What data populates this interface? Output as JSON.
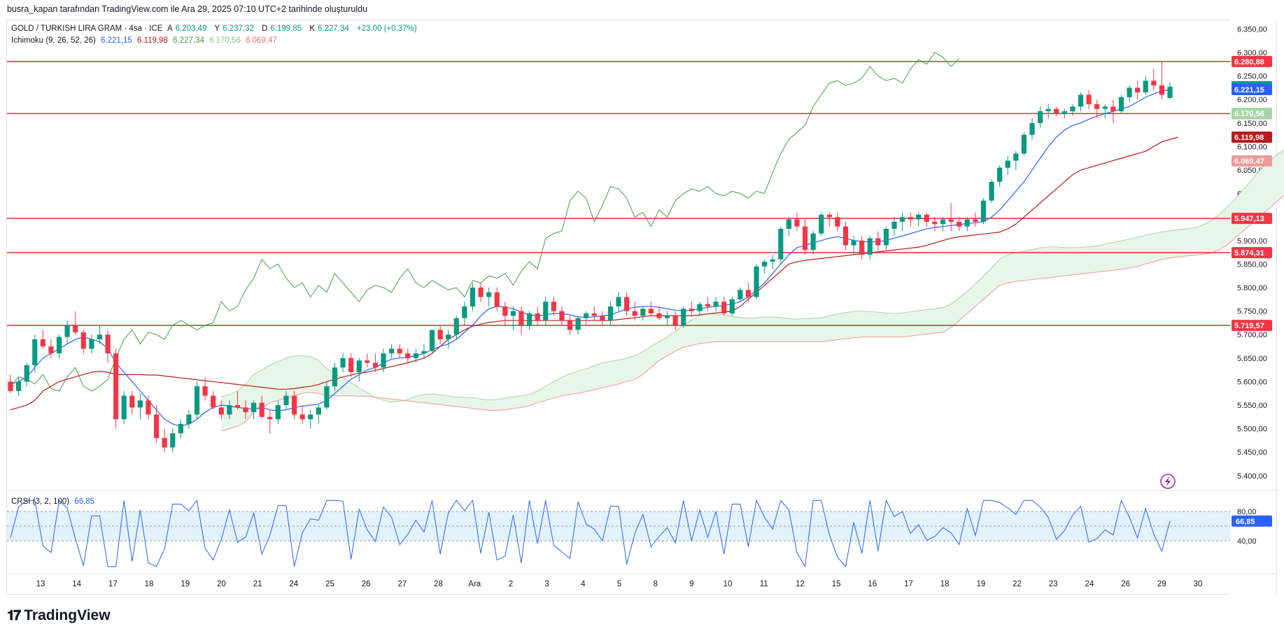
{
  "header": {
    "published_note": "busra_kapan tarafından TradingView.com ile Ara 29, 2025 07:10 UTC+2 tarihinde oluşturuldu"
  },
  "legend": {
    "symbol": "GOLD / TURKISH LIRA GRAM · 4sa · ICE",
    "o_label": "A",
    "o_value": "6.203,49",
    "h_label": "Y",
    "h_value": "6.237,32",
    "l_label": "D",
    "l_value": "6.199,85",
    "c_label": "K",
    "c_value": "6.227,34",
    "change": "+23,00 (+0,37%)",
    "ichimoku_label": "Ichimoku (9, 26, 52, 26)",
    "ichimoku_values": [
      "6.221,15",
      "6.119,98",
      "6.227,34",
      "6.170,56",
      "6.069,47"
    ],
    "crsi_label": "CRSI (3, 2, 100)",
    "crsi_value": "66,85"
  },
  "brand": {
    "name": "TradingView"
  },
  "colors": {
    "up": "#089981",
    "down": "#f23645",
    "tenkan": "#2962ff",
    "kijun": "#b71c1c",
    "chikou": "#43a047",
    "span_a": "#a5d6a7",
    "span_b": "#ef9a9a",
    "cloud_bull": "#e8f5e9",
    "cloud_bear": "#fdecea",
    "hline": "#f23645",
    "crsi": "#2962ff",
    "crsi_band": "#e3f2fd",
    "grid": "#f0f3fa",
    "text": "#131722"
  },
  "chart_data": [
    {
      "type": "candlestick",
      "title": "GOLD / TURKISH LIRA GRAM · 4sa · ICE",
      "x_ticks": [
        "13",
        "14",
        "17",
        "18",
        "19",
        "20",
        "21",
        "24",
        "25",
        "26",
        "27",
        "28",
        "Ara",
        "2",
        "3",
        "4",
        "5",
        "8",
        "9",
        "10",
        "11",
        "12",
        "15",
        "16",
        "17",
        "18",
        "19",
        "22",
        "23",
        "24",
        "26",
        "29",
        "30"
      ],
      "y_ticks": [
        "6.350,00",
        "6.300,00",
        "6.250,00",
        "6.200,00",
        "6.150,00",
        "6.100,00",
        "6.050,00",
        "6.000,00",
        "5.950,00",
        "5.900,00",
        "5.850,00",
        "5.800,00",
        "5.750,00",
        "5.700,00",
        "5.650,00",
        "5.600,00",
        "5.550,00",
        "5.500,00",
        "5.450,00",
        "5.400,00"
      ],
      "ylim": [
        5370,
        6370
      ],
      "candles": [
        [
          5600,
          5615,
          5575,
          5580
        ],
        [
          5580,
          5610,
          5570,
          5600
        ],
        [
          5600,
          5640,
          5590,
          5635
        ],
        [
          5635,
          5700,
          5620,
          5690
        ],
        [
          5690,
          5710,
          5670,
          5675
        ],
        [
          5675,
          5690,
          5650,
          5660
        ],
        [
          5660,
          5700,
          5650,
          5695
        ],
        [
          5695,
          5730,
          5680,
          5720
        ],
        [
          5720,
          5750,
          5700,
          5705
        ],
        [
          5705,
          5710,
          5660,
          5670
        ],
        [
          5670,
          5700,
          5660,
          5690
        ],
        [
          5690,
          5720,
          5680,
          5700
        ],
        [
          5700,
          5710,
          5640,
          5660
        ],
        [
          5660,
          5670,
          5500,
          5520
        ],
        [
          5520,
          5580,
          5510,
          5570
        ],
        [
          5570,
          5580,
          5530,
          5545
        ],
        [
          5545,
          5575,
          5520,
          5560
        ],
        [
          5560,
          5570,
          5520,
          5530
        ],
        [
          5530,
          5550,
          5470,
          5480
        ],
        [
          5480,
          5500,
          5450,
          5460
        ],
        [
          5460,
          5500,
          5450,
          5490
        ],
        [
          5490,
          5520,
          5480,
          5510
        ],
        [
          5510,
          5540,
          5500,
          5530
        ],
        [
          5530,
          5600,
          5520,
          5590
        ],
        [
          5590,
          5610,
          5560,
          5570
        ],
        [
          5570,
          5580,
          5540,
          5545
        ],
        [
          5545,
          5560,
          5520,
          5530
        ],
        [
          5530,
          5560,
          5520,
          5550
        ],
        [
          5550,
          5580,
          5540,
          5545
        ],
        [
          5545,
          5560,
          5520,
          5535
        ],
        [
          5535,
          5560,
          5520,
          5555
        ],
        [
          5555,
          5570,
          5520,
          5525
        ],
        [
          5525,
          5540,
          5490,
          5520
        ],
        [
          5520,
          5560,
          5510,
          5550
        ],
        [
          5550,
          5580,
          5540,
          5570
        ],
        [
          5570,
          5580,
          5520,
          5530
        ],
        [
          5530,
          5550,
          5510,
          5520
        ],
        [
          5520,
          5540,
          5500,
          5530
        ],
        [
          5530,
          5550,
          5510,
          5545
        ],
        [
          5545,
          5600,
          5540,
          5590
        ],
        [
          5590,
          5640,
          5580,
          5630
        ],
        [
          5630,
          5660,
          5620,
          5650
        ],
        [
          5650,
          5660,
          5610,
          5620
        ],
        [
          5620,
          5650,
          5600,
          5645
        ],
        [
          5645,
          5660,
          5630,
          5640
        ],
        [
          5640,
          5660,
          5620,
          5630
        ],
        [
          5630,
          5670,
          5620,
          5660
        ],
        [
          5660,
          5680,
          5650,
          5670
        ],
        [
          5670,
          5680,
          5650,
          5660
        ],
        [
          5660,
          5670,
          5640,
          5650
        ],
        [
          5650,
          5670,
          5640,
          5660
        ],
        [
          5660,
          5680,
          5650,
          5665
        ],
        [
          5665,
          5700,
          5660,
          5710
        ],
        [
          5710,
          5720,
          5680,
          5690
        ],
        [
          5690,
          5710,
          5670,
          5700
        ],
        [
          5700,
          5740,
          5690,
          5735
        ],
        [
          5735,
          5770,
          5720,
          5760
        ],
        [
          5760,
          5810,
          5750,
          5800
        ],
        [
          5800,
          5810,
          5770,
          5780
        ],
        [
          5780,
          5800,
          5760,
          5790
        ],
        [
          5790,
          5800,
          5750,
          5760
        ],
        [
          5760,
          5770,
          5720,
          5740
        ],
        [
          5740,
          5760,
          5710,
          5750
        ],
        [
          5750,
          5760,
          5700,
          5720
        ],
        [
          5720,
          5750,
          5710,
          5745
        ],
        [
          5745,
          5760,
          5720,
          5730
        ],
        [
          5730,
          5780,
          5720,
          5770
        ],
        [
          5770,
          5780,
          5740,
          5750
        ],
        [
          5750,
          5760,
          5720,
          5730
        ],
        [
          5730,
          5740,
          5700,
          5710
        ],
        [
          5710,
          5740,
          5700,
          5735
        ],
        [
          5735,
          5750,
          5720,
          5745
        ],
        [
          5745,
          5760,
          5730,
          5740
        ],
        [
          5740,
          5750,
          5720,
          5730
        ],
        [
          5730,
          5770,
          5720,
          5760
        ],
        [
          5760,
          5790,
          5750,
          5780
        ],
        [
          5780,
          5790,
          5740,
          5750
        ],
        [
          5750,
          5770,
          5730,
          5740
        ],
        [
          5740,
          5760,
          5730,
          5755
        ],
        [
          5755,
          5770,
          5740,
          5745
        ],
        [
          5745,
          5760,
          5730,
          5735
        ],
        [
          5735,
          5750,
          5720,
          5740
        ],
        [
          5740,
          5750,
          5710,
          5720
        ],
        [
          5720,
          5760,
          5715,
          5755
        ],
        [
          5755,
          5770,
          5740,
          5750
        ],
        [
          5750,
          5770,
          5740,
          5765
        ],
        [
          5765,
          5780,
          5750,
          5760
        ],
        [
          5760,
          5780,
          5750,
          5770
        ],
        [
          5770,
          5780,
          5740,
          5745
        ],
        [
          5745,
          5780,
          5740,
          5775
        ],
        [
          5775,
          5800,
          5770,
          5795
        ],
        [
          5795,
          5810,
          5770,
          5780
        ],
        [
          5780,
          5850,
          5775,
          5845
        ],
        [
          5845,
          5860,
          5830,
          5855
        ],
        [
          5855,
          5870,
          5840,
          5860
        ],
        [
          5860,
          5930,
          5850,
          5925
        ],
        [
          5925,
          5950,
          5910,
          5945
        ],
        [
          5945,
          5960,
          5920,
          5930
        ],
        [
          5930,
          5945,
          5870,
          5880
        ],
        [
          5880,
          5920,
          5870,
          5915
        ],
        [
          5915,
          5960,
          5910,
          5955
        ],
        [
          5955,
          5960,
          5930,
          5950
        ],
        [
          5950,
          5960,
          5920,
          5930
        ],
        [
          5930,
          5940,
          5880,
          5890
        ],
        [
          5890,
          5910,
          5870,
          5900
        ],
        [
          5900,
          5910,
          5860,
          5870
        ],
        [
          5870,
          5910,
          5860,
          5905
        ],
        [
          5905,
          5920,
          5880,
          5890
        ],
        [
          5890,
          5930,
          5880,
          5925
        ],
        [
          5925,
          5950,
          5910,
          5940
        ],
        [
          5940,
          5960,
          5920,
          5950
        ],
        [
          5950,
          5960,
          5930,
          5945
        ],
        [
          5945,
          5960,
          5930,
          5955
        ],
        [
          5955,
          5960,
          5930,
          5940
        ],
        [
          5940,
          5950,
          5920,
          5935
        ],
        [
          5935,
          5950,
          5920,
          5945
        ],
        [
          5945,
          5980,
          5920,
          5940
        ],
        [
          5940,
          5950,
          5920,
          5930
        ],
        [
          5930,
          5950,
          5920,
          5945
        ],
        [
          5945,
          5960,
          5930,
          5940
        ],
        [
          5940,
          5990,
          5935,
          5985
        ],
        [
          5985,
          6030,
          5980,
          6025
        ],
        [
          6025,
          6060,
          6015,
          6055
        ],
        [
          6055,
          6080,
          6040,
          6070
        ],
        [
          6070,
          6090,
          6050,
          6085
        ],
        [
          6085,
          6130,
          6080,
          6125
        ],
        [
          6125,
          6160,
          6115,
          6150
        ],
        [
          6150,
          6185,
          6140,
          6175
        ],
        [
          6175,
          6190,
          6160,
          6180
        ],
        [
          6180,
          6185,
          6165,
          6170
        ],
        [
          6170,
          6180,
          6160,
          6175
        ],
        [
          6175,
          6190,
          6165,
          6185
        ],
        [
          6185,
          6215,
          6175,
          6210
        ],
        [
          6210,
          6220,
          6180,
          6190
        ],
        [
          6190,
          6200,
          6160,
          6180
        ],
        [
          6180,
          6190,
          6160,
          6185
        ],
        [
          6185,
          6200,
          6150,
          6175
        ],
        [
          6175,
          6210,
          6170,
          6205
        ],
        [
          6205,
          6230,
          6195,
          6225
        ],
        [
          6225,
          6240,
          6200,
          6215
        ],
        [
          6215,
          6250,
          6210,
          6240
        ],
        [
          6240,
          6265,
          6220,
          6230
        ],
        [
          6230,
          6280,
          6200,
          6210
        ],
        [
          6203.49,
          6237.32,
          6199.85,
          6227.34
        ]
      ],
      "horizontal_levels": [
        "6.280,88",
        "6.170,14",
        "5.947,13",
        "5.874,31",
        "5.719,57"
      ],
      "level_values": [
        6280.88,
        6170.14,
        5947.13,
        5874.31,
        5719.57
      ],
      "ichimoku": {
        "tenkan": [
          5595,
          5600,
          5610,
          5630,
          5650,
          5660,
          5670,
          5680,
          5690,
          5695,
          5690,
          5685,
          5670,
          5640,
          5620,
          5600,
          5580,
          5560,
          5540,
          5520,
          5510,
          5505,
          5510,
          5520,
          5535,
          5545,
          5550,
          5548,
          5545,
          5543,
          5542,
          5545,
          5540,
          5538,
          5540,
          5545,
          5548,
          5550,
          5552,
          5560,
          5575,
          5590,
          5605,
          5615,
          5625,
          5630,
          5640,
          5648,
          5650,
          5652,
          5655,
          5660,
          5668,
          5675,
          5680,
          5690,
          5705,
          5720,
          5740,
          5755,
          5760,
          5758,
          5755,
          5748,
          5742,
          5740,
          5742,
          5745,
          5745,
          5742,
          5738,
          5736,
          5738,
          5740,
          5742,
          5748,
          5755,
          5758,
          5760,
          5760,
          5758,
          5755,
          5752,
          5750,
          5752,
          5755,
          5758,
          5760,
          5762,
          5765,
          5770,
          5780,
          5795,
          5810,
          5830,
          5850,
          5870,
          5885,
          5890,
          5895,
          5900,
          5905,
          5908,
          5905,
          5900,
          5898,
          5897,
          5898,
          5900,
          5905,
          5910,
          5915,
          5920,
          5925,
          5928,
          5930,
          5932,
          5934,
          5936,
          5938,
          5940,
          5950,
          5965,
          5985,
          6005,
          6025,
          6050,
          6075,
          6100,
          6120,
          6135,
          6145,
          6150,
          6158,
          6165,
          6170,
          6175,
          6180,
          6185,
          6195,
          6205,
          6212,
          6218,
          6221.15
        ],
        "kijun": [
          5540,
          5545,
          5550,
          5560,
          5580,
          5590,
          5600,
          5605,
          5610,
          5615,
          5620,
          5622,
          5620,
          5615,
          5615,
          5615,
          5615,
          5614,
          5614,
          5612,
          5610,
          5608,
          5606,
          5604,
          5602,
          5600,
          5598,
          5596,
          5594,
          5592,
          5590,
          5588,
          5586,
          5584,
          5584,
          5585,
          5588,
          5590,
          5594,
          5600,
          5605,
          5610,
          5614,
          5618,
          5620,
          5624,
          5628,
          5632,
          5636,
          5640,
          5645,
          5650,
          5660,
          5675,
          5690,
          5700,
          5710,
          5718,
          5722,
          5726,
          5728,
          5730,
          5730,
          5730,
          5730,
          5730,
          5730,
          5730,
          5730,
          5730,
          5730,
          5730,
          5730,
          5730,
          5730,
          5732,
          5734,
          5736,
          5738,
          5740,
          5740,
          5740,
          5740,
          5740,
          5740,
          5742,
          5744,
          5746,
          5748,
          5750,
          5760,
          5775,
          5790,
          5805,
          5820,
          5835,
          5850,
          5855,
          5858,
          5860,
          5862,
          5864,
          5866,
          5868,
          5870,
          5872,
          5874,
          5876,
          5878,
          5880,
          5882,
          5884,
          5886,
          5890,
          5895,
          5900,
          5905,
          5908,
          5910,
          5912,
          5914,
          5916,
          5918,
          5925,
          5935,
          5950,
          5965,
          5980,
          5995,
          6010,
          6025,
          6040,
          6050,
          6055,
          6060,
          6065,
          6070,
          6075,
          6080,
          6085,
          6090,
          6100,
          6110,
          6115,
          6119.98
        ]
      },
      "crsi": {
        "overbought": 80,
        "oversold": 40,
        "midline": 60,
        "last": 66.85,
        "y_ticks": [
          "80,00",
          "40,00"
        ]
      }
    }
  ]
}
